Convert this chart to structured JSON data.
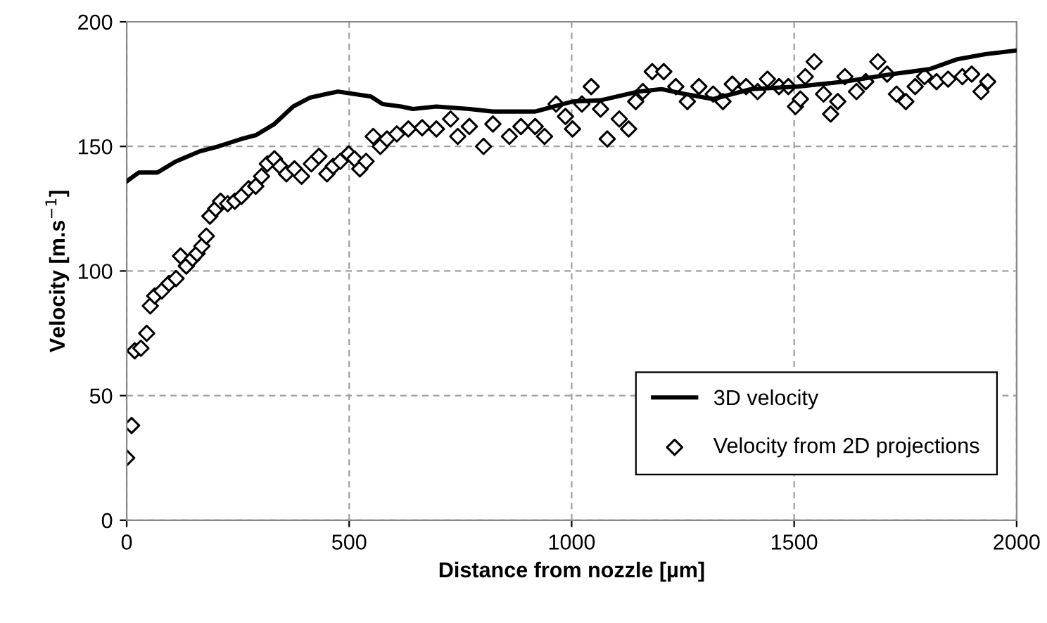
{
  "chart_data": {
    "type": "line",
    "xlabel": "Distance from nozzle [µm]",
    "ylabel": "Velocity [m.s$^{−1}$]",
    "xlim": [
      0,
      2000
    ],
    "xticks": [
      0,
      500,
      1000,
      1500,
      2000
    ],
    "ylim": [
      0,
      200
    ],
    "yticks": [
      0,
      50,
      100,
      150,
      200
    ],
    "grid": true,
    "legend": "bottom right",
    "series": [
      {
        "name": "3D velocity",
        "color": "#000000",
        "marker": "none",
        "line_style": "solid",
        "x": [
          0,
          27,
          69,
          111,
          164,
          206,
          258,
          290,
          332,
          374,
          411,
          448,
          475,
          512,
          549,
          575,
          617,
          643,
          696,
          770,
          823,
          918,
          1002,
          1065,
          1150,
          1202,
          1255,
          1318,
          1403,
          1508,
          1614,
          1719,
          1804,
          1867,
          1930,
          2000
        ],
        "values": [
          136,
          139.5,
          139.5,
          144,
          148,
          150,
          153,
          154.5,
          159,
          166,
          169.5,
          171,
          172,
          171,
          170,
          167,
          166,
          165,
          166,
          165,
          164,
          164,
          168,
          168.5,
          172,
          173,
          171,
          169,
          173,
          174,
          176,
          179,
          181,
          185,
          187,
          188.5
        ]
      },
      {
        "name": "Velocity from 2D projections",
        "type": "scatter",
        "color": "#000000",
        "marker": "diamond",
        "x": [
          0,
          11,
          18,
          32,
          45,
          53,
          63,
          79,
          95,
          111,
          121,
          134,
          148,
          158,
          169,
          179,
          187,
          200,
          211,
          227,
          243,
          258,
          274,
          290,
          303,
          316,
          332,
          345,
          359,
          377,
          393,
          415,
          432,
          450,
          464,
          480,
          499,
          512,
          524,
          538,
          554,
          570,
          585,
          607,
          633,
          664,
          696,
          728,
          744,
          770,
          802,
          823,
          860,
          886,
          918,
          939,
          965,
          986,
          1002,
          1023,
          1044,
          1065,
          1080,
          1107,
          1128,
          1144,
          1160,
          1181,
          1207,
          1234,
          1260,
          1286,
          1318,
          1340,
          1361,
          1392,
          1418,
          1440,
          1466,
          1487,
          1503,
          1514,
          1525,
          1545,
          1566,
          1582,
          1598,
          1614,
          1640,
          1661,
          1688,
          1709,
          1730,
          1751,
          1772,
          1793,
          1820,
          1846,
          1878,
          1899,
          1920,
          1935
        ],
        "values": [
          25,
          38,
          68,
          69,
          75,
          86,
          90,
          92,
          95,
          97,
          106,
          102,
          105,
          107,
          110,
          114,
          122,
          125,
          128,
          127,
          128,
          130,
          133,
          134,
          138,
          143,
          145,
          142,
          139,
          141,
          138,
          143,
          146,
          139,
          142,
          144,
          147,
          145,
          141,
          144,
          154,
          150,
          153,
          155,
          157,
          157.5,
          157,
          161,
          154,
          158,
          150,
          159,
          154,
          158,
          158,
          154,
          167,
          162,
          157,
          167,
          174,
          165,
          153,
          161,
          157,
          168,
          172,
          180,
          180,
          174,
          168,
          174,
          171,
          168,
          175,
          174,
          172,
          177,
          174,
          174,
          166,
          169,
          178,
          184,
          171,
          163,
          168,
          178,
          172,
          176,
          184,
          179,
          171,
          168,
          174,
          178,
          176,
          177,
          178,
          179,
          172,
          176
        ]
      }
    ]
  }
}
